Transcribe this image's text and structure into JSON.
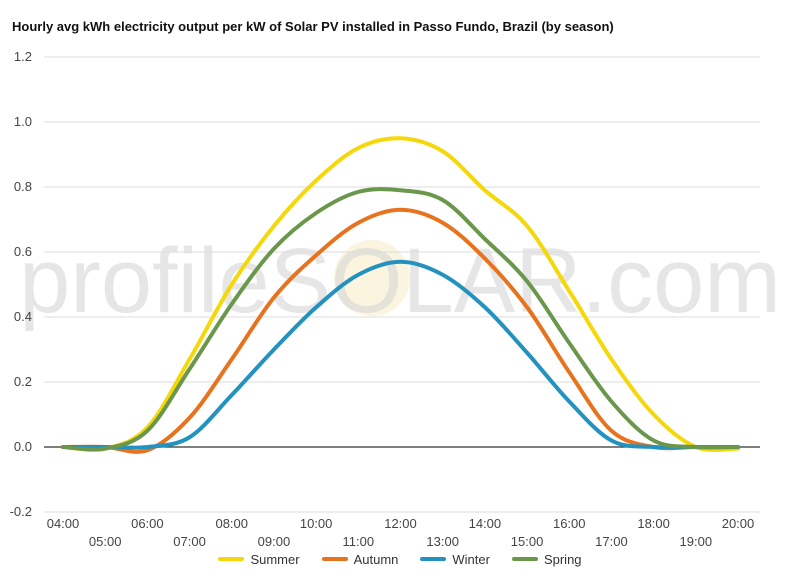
{
  "chart_data": {
    "type": "line",
    "title": "Hourly avg kWh electricity output per kW of Solar PV installed in Passo Fundo, Brazil (by season)",
    "xlabel": "",
    "ylabel": "",
    "watermark": "profileSOLAR.com",
    "x": [
      "04:00",
      "05:00",
      "06:00",
      "07:00",
      "08:00",
      "09:00",
      "10:00",
      "11:00",
      "12:00",
      "13:00",
      "14:00",
      "15:00",
      "16:00",
      "17:00",
      "18:00",
      "19:00",
      "20:00"
    ],
    "ylim": [
      -0.2,
      1.2
    ],
    "yticks": [
      "-0.2",
      "0.0",
      "0.2",
      "0.4",
      "0.6",
      "0.8",
      "1.0",
      "1.2"
    ],
    "grid": true,
    "legend_position": "bottom",
    "series": [
      {
        "name": "Summer",
        "color": "#f5d80b",
        "values": [
          0.0,
          -0.005,
          0.06,
          0.27,
          0.5,
          0.68,
          0.82,
          0.92,
          0.95,
          0.91,
          0.79,
          0.68,
          0.48,
          0.27,
          0.1,
          0.0,
          -0.005
        ]
      },
      {
        "name": "Autumn",
        "color": "#e8731e",
        "values": [
          0.0,
          0.0,
          -0.01,
          0.09,
          0.27,
          0.46,
          0.59,
          0.69,
          0.73,
          0.69,
          0.58,
          0.43,
          0.23,
          0.05,
          0.0,
          0.0,
          0.0
        ]
      },
      {
        "name": "Winter",
        "color": "#2392bf",
        "values": [
          0.0,
          0.0,
          0.0,
          0.03,
          0.16,
          0.3,
          0.43,
          0.53,
          0.57,
          0.53,
          0.43,
          0.29,
          0.14,
          0.02,
          0.0,
          0.0,
          0.0
        ]
      },
      {
        "name": "Spring",
        "color": "#6a974c",
        "values": [
          0.0,
          -0.005,
          0.05,
          0.24,
          0.44,
          0.61,
          0.72,
          0.785,
          0.79,
          0.76,
          0.64,
          0.51,
          0.32,
          0.14,
          0.02,
          0.0,
          0.0
        ]
      }
    ]
  }
}
